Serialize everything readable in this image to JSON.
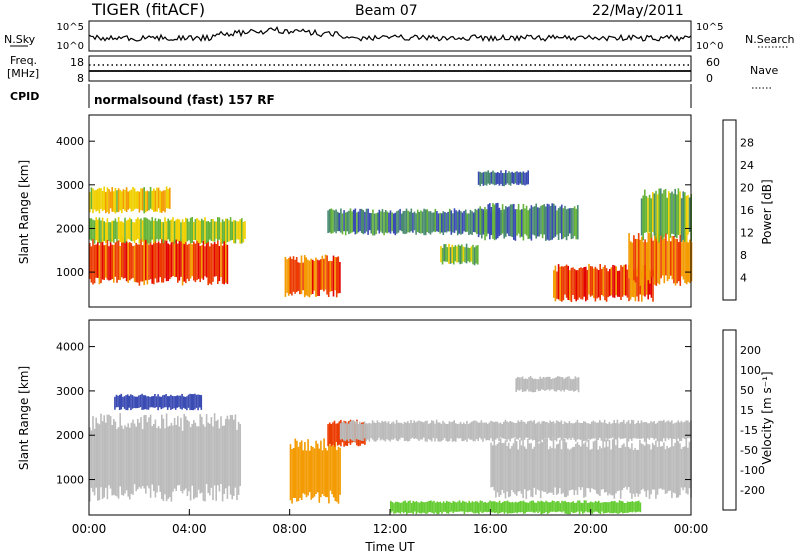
{
  "header": {
    "radar": "TIGER (fitACF)",
    "beam": "Beam 07",
    "date": "22/May/2011"
  },
  "top_panels": {
    "nsky_label": "N.Sky",
    "nsky_ticks": [
      "10^5",
      "10^0"
    ],
    "nsearch_label": "N.Search",
    "nsearch_ticks": [
      "10^5",
      "10^0"
    ],
    "freq_label": "Freq.",
    "freq_unit": "[MHz]",
    "freq_ticks": [
      "18",
      "8"
    ],
    "nave_label": "Nave",
    "nave_ticks": [
      "60",
      "0"
    ],
    "cpid_label": "CPID",
    "cpid_text": "normalsound (fast) 157 RF"
  },
  "chart_data": [
    {
      "type": "heatmap",
      "panel": "power",
      "ylabel": "Slant Range [km]",
      "xlabel": "",
      "ylim": [
        200,
        4600
      ],
      "xlim": [
        0,
        24
      ],
      "yticks": [
        "1000",
        "2000",
        "3000",
        "4000"
      ],
      "colorbar": {
        "label": "Power [dB]",
        "ticks": [
          "28",
          "24",
          "20",
          "16",
          "12",
          "8",
          "4"
        ],
        "colors": [
          "#0000dd",
          "#3a4bb4",
          "#4a8a70",
          "#66b33a",
          "#f0d000",
          "#f39b00",
          "#ec3b00",
          "#e30000"
        ]
      },
      "echo_regions": [
        {
          "t0": 0,
          "t1": 5.5,
          "r0": 800,
          "r1": 1700,
          "level": 26
        },
        {
          "t0": 0,
          "t1": 6.2,
          "r0": 1700,
          "r1": 2200,
          "level": 16
        },
        {
          "t0": 0,
          "t1": 3.2,
          "r0": 2400,
          "r1": 2900,
          "level": 18
        },
        {
          "t0": 7.8,
          "t1": 10,
          "r0": 500,
          "r1": 1300,
          "level": 26
        },
        {
          "t0": 9.5,
          "t1": 16.5,
          "r0": 1900,
          "r1": 2400,
          "level": 10
        },
        {
          "t0": 14,
          "t1": 15.5,
          "r0": 1200,
          "r1": 1600,
          "level": 14
        },
        {
          "t0": 15.5,
          "t1": 19.5,
          "r0": 1800,
          "r1": 2500,
          "level": 10
        },
        {
          "t0": 18.5,
          "t1": 22.5,
          "r0": 400,
          "r1": 1100,
          "level": 26
        },
        {
          "t0": 21.5,
          "t1": 24,
          "r0": 800,
          "r1": 1800,
          "level": 24
        },
        {
          "t0": 22,
          "t1": 24,
          "r0": 1800,
          "r1": 2800,
          "level": 14
        },
        {
          "t0": 15.5,
          "t1": 17.5,
          "r0": 3000,
          "r1": 3300,
          "level": 8
        }
      ]
    },
    {
      "type": "heatmap",
      "panel": "velocity",
      "ylabel": "Slant Range [km]",
      "xlabel": "Time UT",
      "ylim": [
        200,
        4600
      ],
      "xlim": [
        0,
        24
      ],
      "xticks": [
        "00:00",
        "04:00",
        "08:00",
        "12:00",
        "16:00",
        "20:00",
        "00:00"
      ],
      "yticks": [
        "1000",
        "2000",
        "3000",
        "4000"
      ],
      "colorbar": {
        "label": "Velocity [m s⁻¹]",
        "ticks": [
          "200",
          "100",
          "50",
          "15",
          "-15",
          "-50",
          "-100",
          "-200"
        ],
        "colors": [
          "#e30000",
          "#ec3b00",
          "#f39b00",
          "#f0b000",
          "#bbbbbb",
          "#66cc33",
          "#2b9c3a",
          "#3a4bb4",
          "#0000cc"
        ]
      },
      "echo_regions": [
        {
          "t0": 0,
          "t1": 6,
          "r0": 700,
          "r1": 2300,
          "level": 0
        },
        {
          "t0": 1,
          "t1": 4.5,
          "r0": 2600,
          "r1": 2900,
          "level": -150
        },
        {
          "t0": 8,
          "t1": 10,
          "r0": 600,
          "r1": 1800,
          "level": 60
        },
        {
          "t0": 9.5,
          "t1": 11,
          "r0": 1800,
          "r1": 2300,
          "level": 150
        },
        {
          "t0": 10,
          "t1": 24,
          "r0": 1900,
          "r1": 2300,
          "level": 0
        },
        {
          "t0": 16,
          "t1": 24,
          "r0": 700,
          "r1": 1800,
          "level": 0
        },
        {
          "t0": 12,
          "t1": 22,
          "r0": 250,
          "r1": 500,
          "level": -40
        },
        {
          "t0": 17,
          "t1": 19.5,
          "r0": 3000,
          "r1": 3300,
          "level": 0
        }
      ]
    }
  ]
}
